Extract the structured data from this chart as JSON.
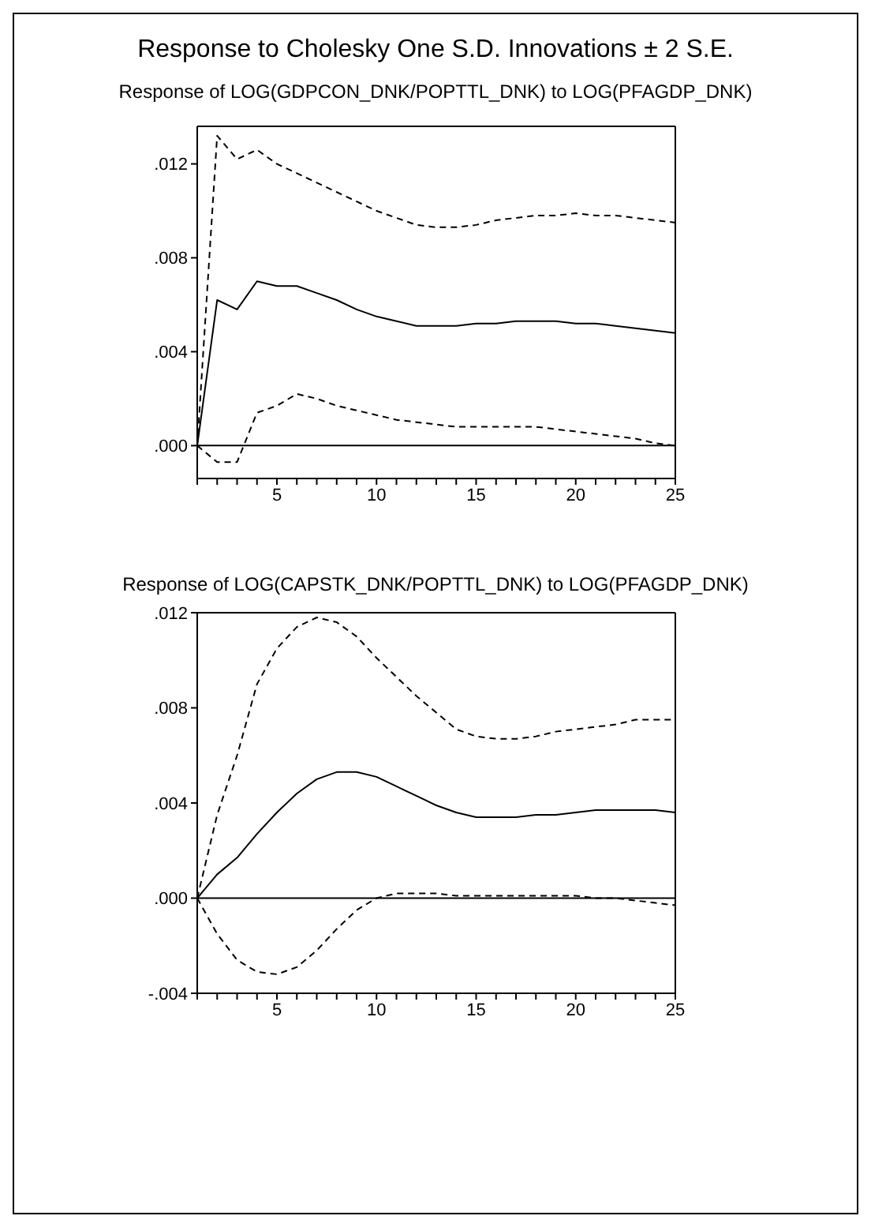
{
  "chart_data": [
    {
      "type": "line",
      "title": "Response to Cholesky One S.D. Innovations ± 2 S.E.",
      "subtitle": "Response of LOG(GDPCON_DNK/POPTTL_DNK) to LOG(PFAGDP_DNK)",
      "marker": "none",
      "x": [
        1,
        2,
        3,
        4,
        5,
        6,
        7,
        8,
        9,
        10,
        11,
        12,
        13,
        14,
        15,
        16,
        17,
        18,
        19,
        20,
        21,
        22,
        23,
        24,
        25
      ],
      "series": [
        {
          "color": "#000000",
          "line_style": "solid",
          "values": [
            0,
            0.0062,
            0.0058,
            0.007,
            0.0068,
            0.0068,
            0.0065,
            0.0062,
            0.0058,
            0.0055,
            0.0053,
            0.0051,
            0.0051,
            0.0051,
            0.0052,
            0.0052,
            0.0053,
            0.0053,
            0.0053,
            0.0052,
            0.0052,
            0.0051,
            0.005,
            0.0049,
            0.0048
          ]
        },
        {
          "color": "#000000",
          "line_style": "dashed",
          "values": [
            0,
            0.0132,
            0.0122,
            0.0126,
            0.012,
            0.0116,
            0.0112,
            0.0108,
            0.0104,
            0.01,
            0.0097,
            0.0094,
            0.0093,
            0.0093,
            0.0094,
            0.0096,
            0.0097,
            0.0098,
            0.0098,
            0.0099,
            0.0098,
            0.0098,
            0.0097,
            0.0096,
            0.0095
          ]
        },
        {
          "color": "#000000",
          "line_style": "dashed",
          "values": [
            0,
            -0.0007,
            -0.0007,
            0.0014,
            0.0017,
            0.0022,
            0.002,
            0.0017,
            0.0015,
            0.0013,
            0.0011,
            0.001,
            0.0009,
            0.0008,
            0.0008,
            0.0008,
            0.0008,
            0.0008,
            0.0007,
            0.0006,
            0.0005,
            0.0004,
            0.0003,
            0.0001,
            0.0
          ]
        }
      ],
      "xlim": [
        1,
        25
      ],
      "xticks": [
        {
          "value": 1,
          "label": null
        },
        {
          "value": 2,
          "label": null
        },
        {
          "value": 3,
          "label": null
        },
        {
          "value": 4,
          "label": null
        },
        5,
        {
          "value": 6,
          "label": null
        },
        {
          "value": 7,
          "label": null
        },
        {
          "value": 8,
          "label": null
        },
        {
          "value": 9,
          "label": null
        },
        10,
        {
          "value": 11,
          "label": null
        },
        {
          "value": 12,
          "label": null
        },
        {
          "value": 13,
          "label": null
        },
        {
          "value": 14,
          "label": null
        },
        15,
        {
          "value": 16,
          "label": null
        },
        {
          "value": 17,
          "label": null
        },
        {
          "value": 18,
          "label": null
        },
        {
          "value": 19,
          "label": null
        },
        20,
        {
          "value": 21,
          "label": null
        },
        {
          "value": 22,
          "label": null
        },
        {
          "value": 23,
          "label": null
        },
        {
          "value": 24,
          "label": null
        },
        25
      ],
      "ylim": [
        -0.0014,
        0.0136
      ],
      "yticks": [
        {
          "value": 0,
          "label": ".000"
        },
        {
          "value": 0.004,
          "label": ".004"
        },
        {
          "value": 0.008,
          "label": ".008"
        },
        {
          "value": 0.012,
          "label": ".012"
        }
      ],
      "ref_lines": [
        {
          "axis": "y",
          "value": 0,
          "color": "#000000",
          "line_style": "solid"
        }
      ]
    },
    {
      "type": "line",
      "title": "Response of LOG(CAPSTK_DNK/POPTTL_DNK) to LOG(PFAGDP_DNK)",
      "marker": "none",
      "x": [
        1,
        2,
        3,
        4,
        5,
        6,
        7,
        8,
        9,
        10,
        11,
        12,
        13,
        14,
        15,
        16,
        17,
        18,
        19,
        20,
        21,
        22,
        23,
        24,
        25
      ],
      "series": [
        {
          "color": "#000000",
          "line_style": "solid",
          "values": [
            0,
            0.001,
            0.0017,
            0.0027,
            0.0036,
            0.0044,
            0.005,
            0.0053,
            0.0053,
            0.0051,
            0.0047,
            0.0043,
            0.0039,
            0.0036,
            0.0034,
            0.0034,
            0.0034,
            0.0035,
            0.0035,
            0.0036,
            0.0037,
            0.0037,
            0.0037,
            0.0037,
            0.0036
          ]
        },
        {
          "color": "#000000",
          "line_style": "dashed",
          "values": [
            0,
            0.0035,
            0.006,
            0.009,
            0.0105,
            0.0114,
            0.0118,
            0.0116,
            0.011,
            0.0101,
            0.0093,
            0.0085,
            0.0078,
            0.0071,
            0.0068,
            0.0067,
            0.0067,
            0.0068,
            0.007,
            0.0071,
            0.0072,
            0.0073,
            0.0075,
            0.0075,
            0.0075
          ]
        },
        {
          "color": "#000000",
          "line_style": "dashed",
          "values": [
            0,
            -0.0015,
            -0.0026,
            -0.0031,
            -0.0032,
            -0.0029,
            -0.0022,
            -0.0013,
            -0.0005,
            0.0,
            0.0002,
            0.0002,
            0.0002,
            0.0001,
            0.0001,
            0.0001,
            0.0001,
            0.0001,
            0.0001,
            0.0001,
            0.0,
            0.0,
            -0.0001,
            -0.0002,
            -0.0003
          ]
        }
      ],
      "xlim": [
        1,
        25
      ],
      "xticks": [
        {
          "value": 1,
          "label": null
        },
        {
          "value": 2,
          "label": null
        },
        {
          "value": 3,
          "label": null
        },
        {
          "value": 4,
          "label": null
        },
        5,
        {
          "value": 6,
          "label": null
        },
        {
          "value": 7,
          "label": null
        },
        {
          "value": 8,
          "label": null
        },
        {
          "value": 9,
          "label": null
        },
        10,
        {
          "value": 11,
          "label": null
        },
        {
          "value": 12,
          "label": null
        },
        {
          "value": 13,
          "label": null
        },
        {
          "value": 14,
          "label": null
        },
        15,
        {
          "value": 16,
          "label": null
        },
        {
          "value": 17,
          "label": null
        },
        {
          "value": 18,
          "label": null
        },
        {
          "value": 19,
          "label": null
        },
        20,
        {
          "value": 21,
          "label": null
        },
        {
          "value": 22,
          "label": null
        },
        {
          "value": 23,
          "label": null
        },
        {
          "value": 24,
          "label": null
        },
        25
      ],
      "ylim": [
        -0.004,
        0.012
      ],
      "yticks": [
        {
          "value": -0.004,
          "label": "-.004"
        },
        {
          "value": 0,
          "label": ".000"
        },
        {
          "value": 0.004,
          "label": ".004"
        },
        {
          "value": 0.008,
          "label": ".008"
        },
        {
          "value": 0.012,
          "label": ".012"
        }
      ],
      "ref_lines": [
        {
          "axis": "y",
          "value": 0,
          "color": "#000000",
          "line_style": "solid"
        }
      ]
    }
  ]
}
